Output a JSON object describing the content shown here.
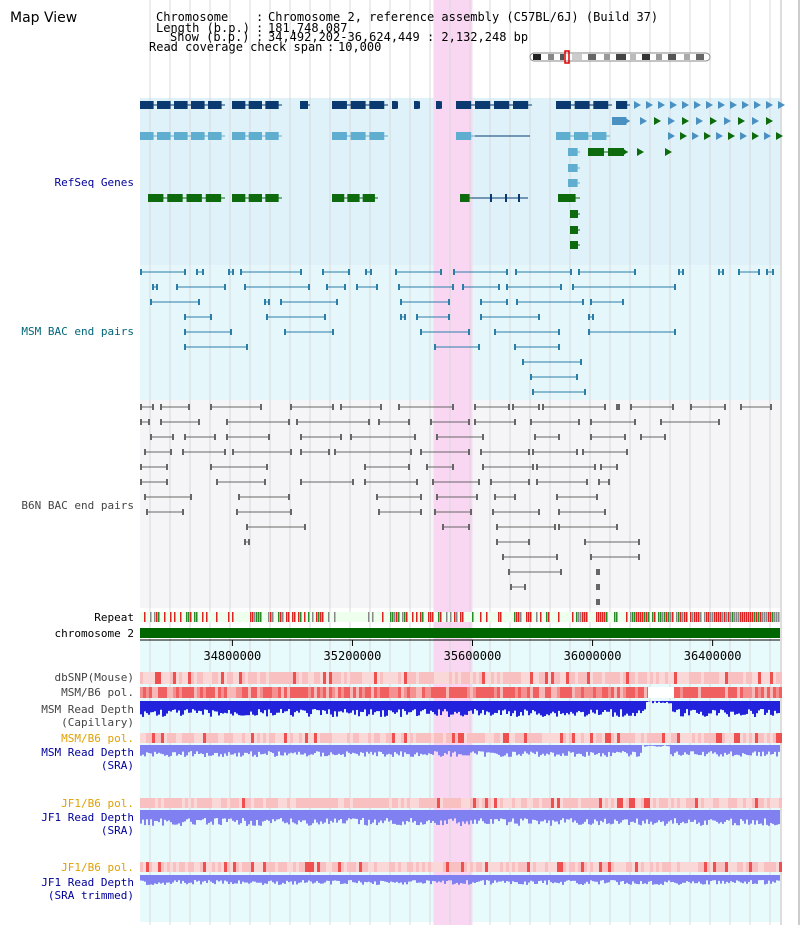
{
  "view_title": "Map View",
  "info": {
    "chromosome_label": "Chromosome",
    "chromosome_value": "Chromosome 2, reference assembly (C57BL/6J) (Build 37)",
    "length_label": "Length (b.p.)",
    "length_value": "181,748,087",
    "show_label": "Show (b.p.)",
    "show_value": "34,492,202-36,624,449 : 2,132,248 bp",
    "coverage_label": "Read coverage check span",
    "coverage_value": "10,000",
    "separator": ":"
  },
  "tracks": {
    "refseq": "RefSeq Genes",
    "msm_bac": "MSM BAC end pairs",
    "b6n_bac": "B6N BAC end pairs",
    "repeat": "Repeat",
    "chromosome": "chromosome 2",
    "dbsnp": "dbSNP(Mouse)",
    "msm_b6_pol_1": "MSM/B6 pol.",
    "msm_depth_cap_1": "MSM Read Depth",
    "msm_depth_cap_2": "(Capillary)",
    "msm_b6_pol_2": "MSM/B6 pol.",
    "msm_depth_sra_1": "MSM Read Depth",
    "msm_depth_sra_2": "(SRA)",
    "jf1_b6_pol_1": "JF1/B6 pol.",
    "jf1_depth_sra_1": "JF1 Read Depth",
    "jf1_depth_sra_2": "(SRA)",
    "jf1_b6_pol_2": "JF1/B6 pol.",
    "jf1_depth_trim_1": "JF1 Read Depth",
    "jf1_depth_trim_2": "(SRA trimmed)"
  },
  "axis": {
    "ticks": [
      {
        "label": "34800000",
        "value": 34800000
      },
      {
        "label": "35200000",
        "value": 35200000
      },
      {
        "label": "35600000",
        "value": 35600000
      },
      {
        "label": "36000000",
        "value": 36000000
      },
      {
        "label": "36400000",
        "value": 36400000
      }
    ],
    "range_start": 34492202,
    "range_end": 36624449,
    "highlight_start": 35470000,
    "highlight_end": 35600000
  },
  "colors": {
    "refseq_bg": "#dff2fa",
    "msm_bg": "#e6f7fb",
    "b6n_bg": "#f5f5f7",
    "lower_bg": "#e8fbfc",
    "highlight": "#f9d7f2",
    "gene_dark": "#0a3a70",
    "gene_mid": "#4a90c0",
    "gene_light": "#5faed0",
    "gene_green": "#0d6b0d",
    "msm_pair": "#2a7ea8",
    "b6n_pair": "#666666",
    "chromosome_bar": "#006600",
    "depth_blue": "#2222dd",
    "depth_light": "#8080f0"
  }
}
